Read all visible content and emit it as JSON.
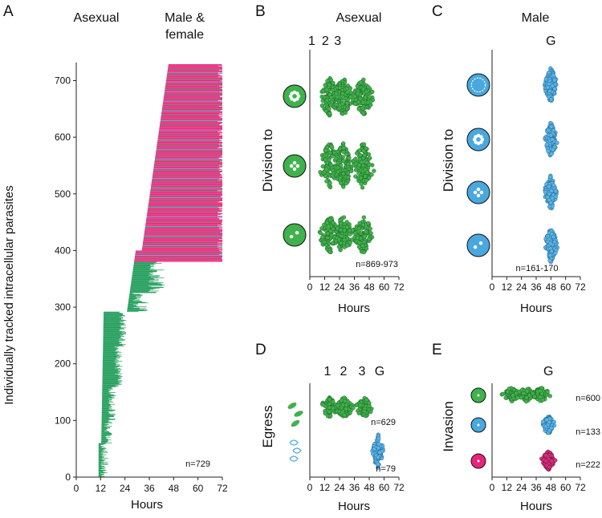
{
  "colors": {
    "asexual": "#1a9a55",
    "asexual_dot": "#3fb24c",
    "male": "#49a8de",
    "male_dot": "#5ab4e8",
    "female": "#e8237a",
    "female_dot": "#d8307c",
    "axis": "#222222"
  },
  "chart_data": [
    {
      "id": "A",
      "letter": "A",
      "type": "bar",
      "orientation": "horizontal-lifeline",
      "headers": {
        "asexual": "Asexual",
        "sexual_line1": "Male &",
        "sexual_line2": "female"
      },
      "xlabel": "Hours",
      "ylabel": "Individually tracked intracellular parasites",
      "xlim": [
        0,
        72
      ],
      "ylim": [
        0,
        729
      ],
      "xticks": [
        "0",
        "12",
        "24",
        "36",
        "48",
        "60",
        "72"
      ],
      "yticks": [
        "0",
        "100",
        "200",
        "300",
        "400",
        "500",
        "600",
        "700"
      ],
      "n_label": "n=729",
      "bands": [
        {
          "from": 0,
          "to": 60,
          "end_hours": 13
        },
        {
          "from": 60,
          "to": 100,
          "end_hours": 15
        },
        {
          "from": 100,
          "to": 160,
          "end_hours": 17
        },
        {
          "from": 160,
          "to": 230,
          "end_hours": 20
        },
        {
          "from": 230,
          "to": 292,
          "end_hours": 22
        },
        {
          "from": 292,
          "to": 325,
          "end_hours": 30
        },
        {
          "from": 325,
          "to": 380,
          "end_hours": 38
        },
        {
          "from": 380,
          "to": 729,
          "end_hours": 72,
          "sexual": true
        }
      ]
    },
    {
      "id": "B",
      "letter": "B",
      "type": "scatter",
      "title": "Asexual",
      "column_labels": [
        "1",
        "2",
        "3"
      ],
      "ylabel": "Division to",
      "xlabel": "Hours",
      "xlim": [
        0,
        72
      ],
      "xticks": [
        "0",
        "12",
        "24",
        "36",
        "48",
        "60",
        "72"
      ],
      "n_label": "n=869-973",
      "rows": [
        {
          "name": "division-to-8",
          "modes_hours": [
            16,
            27,
            43
          ],
          "spread_hours": 10
        },
        {
          "name": "division-to-4",
          "modes_hours": [
            16,
            27,
            43
          ],
          "spread_hours": 10
        },
        {
          "name": "division-to-2",
          "modes_hours": [
            16,
            27,
            43
          ],
          "spread_hours": 10
        }
      ]
    },
    {
      "id": "C",
      "letter": "C",
      "type": "scatter",
      "title": "Male",
      "column_labels": [
        "G"
      ],
      "ylabel": "Division to",
      "xlabel": "Hours",
      "xlim": [
        0,
        72
      ],
      "xticks": [
        "0",
        "12",
        "24",
        "36",
        "48",
        "60",
        "72"
      ],
      "n_label": "n=161-170",
      "rows": [
        {
          "name": "division-to-16",
          "modes_hours": [
            48
          ],
          "spread_hours": 6
        },
        {
          "name": "division-to-8",
          "modes_hours": [
            48
          ],
          "spread_hours": 6
        },
        {
          "name": "division-to-4",
          "modes_hours": [
            48
          ],
          "spread_hours": 6
        },
        {
          "name": "division-to-2",
          "modes_hours": [
            48
          ],
          "spread_hours": 6
        }
      ]
    },
    {
      "id": "D",
      "letter": "D",
      "type": "scatter",
      "title": "",
      "column_labels": [
        "1",
        "2",
        "3",
        "G"
      ],
      "ylabel": "Egress",
      "xlabel": "Hours",
      "xlim": [
        0,
        72
      ],
      "xticks": [
        "0",
        "12",
        "24",
        "36",
        "48",
        "60",
        "72"
      ],
      "rows": [
        {
          "name": "egress-asexual",
          "modes_hours": [
            16,
            28,
            44
          ],
          "spread_hours": 9,
          "n_label": "n=629"
        },
        {
          "name": "egress-male",
          "modes_hours": [
            55
          ],
          "spread_hours": 6,
          "n_label": "n=79"
        }
      ]
    },
    {
      "id": "E",
      "letter": "E",
      "type": "scatter",
      "title": "",
      "column_labels": [
        "G"
      ],
      "ylabel": "Invasion",
      "xlabel": "Hours",
      "xlim": [
        0,
        72
      ],
      "xticks": [
        "0",
        "12",
        "24",
        "36",
        "48",
        "60",
        "72"
      ],
      "rows": [
        {
          "name": "invasion-asexual",
          "modes_hours": [
            16,
            28,
            40
          ],
          "spread_hours": 9,
          "n_label": "n=600"
        },
        {
          "name": "invasion-male",
          "modes_hours": [
            46
          ],
          "spread_hours": 6,
          "n_label": "n=133"
        },
        {
          "name": "invasion-female",
          "modes_hours": [
            46
          ],
          "spread_hours": 6,
          "n_label": "n=222"
        }
      ]
    }
  ]
}
